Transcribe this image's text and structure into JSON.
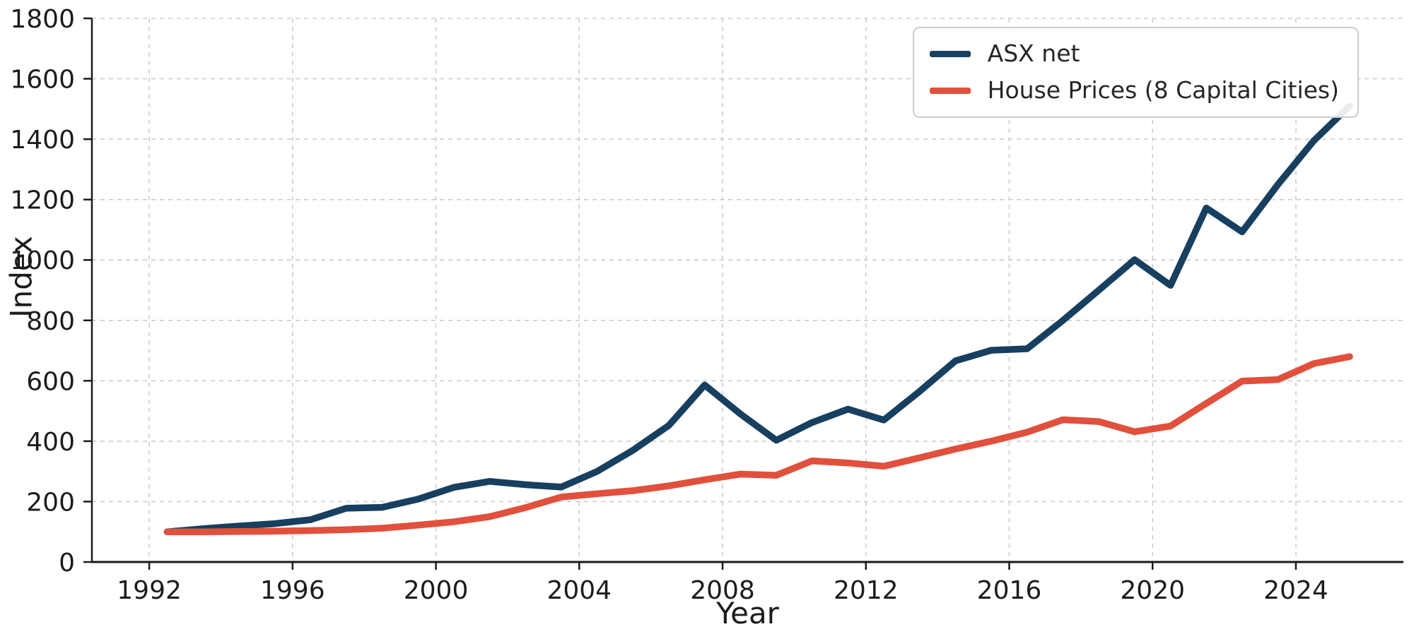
{
  "figure": {
    "background_color": "#ffffff",
    "grid_color": "#cdcdcd",
    "spine_color": "#1a1a1a",
    "text_color": "#1c1c1c"
  },
  "chart_data": {
    "type": "line",
    "title": "",
    "xlabel": "Year",
    "ylabel": "Index",
    "grid": true,
    "legend_position": "upper right",
    "xlim": [
      1990.4,
      2027.0
    ],
    "ylim": [
      0,
      1800
    ],
    "x_ticks": [
      1992,
      1996,
      2000,
      2004,
      2008,
      2012,
      2016,
      2020,
      2024
    ],
    "y_ticks": [
      0,
      200,
      400,
      600,
      800,
      1000,
      1200,
      1400,
      1600,
      1800
    ],
    "x": [
      1992.5,
      1993.5,
      1994.5,
      1995.5,
      1996.5,
      1997.5,
      1998.5,
      1999.5,
      2000.5,
      2001.5,
      2002.5,
      2003.5,
      2004.5,
      2005.5,
      2006.5,
      2007.5,
      2008.5,
      2009.5,
      2010.5,
      2011.5,
      2012.5,
      2013.5,
      2014.5,
      2015.5,
      2016.5,
      2017.5,
      2018.5,
      2019.5,
      2020.5,
      2021.5,
      2022.5,
      2023.5,
      2024.5,
      2025.5
    ],
    "series": [
      {
        "name": "ASX net",
        "color": "#173f5f",
        "values": [
          100,
          110,
          119,
          127,
          140,
          178,
          181,
          208,
          247,
          267,
          256,
          248,
          300,
          370,
          452,
          586,
          490,
          403,
          462,
          506,
          470,
          565,
          666,
          701,
          706,
          800,
          900,
          1001,
          916,
          1172,
          1093,
          1250,
          1395,
          1510
        ]
      },
      {
        "name": "House Prices (8 Capital Cities)",
        "color": "#e0503c",
        "values": [
          100,
          100,
          101,
          102,
          104,
          107,
          112,
          122,
          133,
          150,
          180,
          215,
          226,
          236,
          252,
          272,
          291,
          287,
          335,
          328,
          317,
          345,
          374,
          400,
          430,
          471,
          465,
          431,
          450,
          525,
          599,
          604,
          657,
          680
        ]
      }
    ]
  }
}
